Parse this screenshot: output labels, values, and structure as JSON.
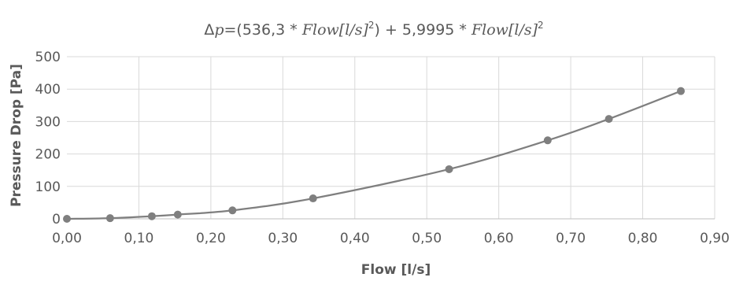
{
  "chart_data": {
    "type": "scatter",
    "title_prefix": "Δ",
    "title_p": "p",
    "title_mid": "=(536,3 * ",
    "title_flow1": "Flow",
    "title_units1": "[l/s]",
    "title_sup1": "2",
    "title_plus": ") + 5,9995 * ",
    "title_flow2": "Flow",
    "title_units2": "[l/s]",
    "title_sup2": "2",
    "xlabel": "Flow [l/s]",
    "ylabel": "Pressure Drop [Pa]",
    "xlim": [
      0,
      0.9
    ],
    "ylim": [
      0,
      500
    ],
    "x_ticks": [
      0,
      0.1,
      0.2,
      0.3,
      0.4,
      0.5,
      0.6,
      0.7,
      0.8,
      0.9
    ],
    "x_tick_labels": [
      "0,00",
      "0,10",
      "0,20",
      "0,30",
      "0,40",
      "0,50",
      "0,60",
      "0,70",
      "0,80",
      "0,90"
    ],
    "y_ticks": [
      0,
      100,
      200,
      300,
      400,
      500
    ],
    "y_tick_labels": [
      "0",
      "100",
      "200",
      "300",
      "400",
      "500"
    ],
    "grid": true,
    "trendline": true,
    "colors": {
      "series": "#7f7f7f",
      "grid": "#d9d9d9",
      "axis": "#bfbfbf",
      "text": "#595959"
    },
    "series": [
      {
        "x": [
          0.0,
          0.06,
          0.118,
          0.154,
          0.23,
          0.342,
          0.531,
          0.668,
          0.753,
          0.853
        ],
        "y": [
          0,
          2,
          8,
          13,
          26,
          63,
          153,
          242,
          308,
          394
        ]
      }
    ]
  }
}
